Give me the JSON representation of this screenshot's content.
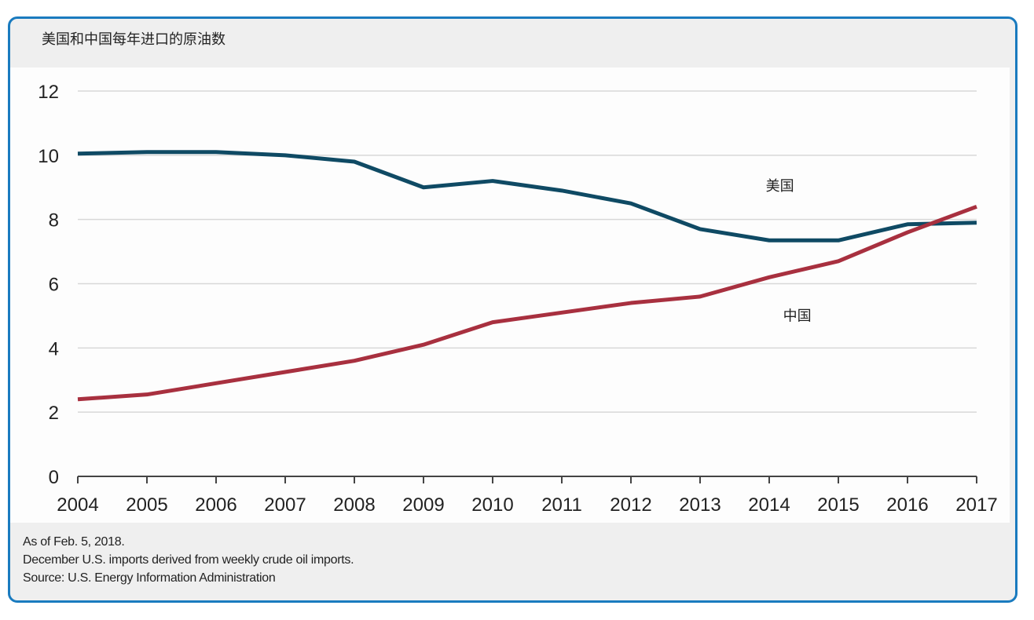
{
  "chart_data": {
    "type": "line",
    "title": "美国和中国每年进口的原油数",
    "xlabel": "",
    "ylabel": "",
    "x": [
      2004,
      2005,
      2006,
      2007,
      2008,
      2009,
      2010,
      2011,
      2012,
      2013,
      2014,
      2015,
      2016,
      2017
    ],
    "x_tick_labels": [
      "2004",
      "2005",
      "2006",
      "2007",
      "2008",
      "2009",
      "2010",
      "2011",
      "2012",
      "2013",
      "2014",
      "2015",
      "2016",
      "2017"
    ],
    "ylim": [
      0,
      12
    ],
    "y_ticks": [
      0,
      2,
      4,
      6,
      8,
      10,
      12
    ],
    "y_tick_labels": [
      "0",
      "2",
      "4",
      "6",
      "8",
      "10",
      "12"
    ],
    "grid": true,
    "legend": "inline labels",
    "series": [
      {
        "name": "美国",
        "color": "#0f4a64",
        "values": [
          10.05,
          10.1,
          10.1,
          10.0,
          9.8,
          9.0,
          9.2,
          8.9,
          8.5,
          7.7,
          7.35,
          7.35,
          7.85,
          7.9
        ],
        "label_at": [
          2013.95,
          8.9
        ]
      },
      {
        "name": "中国",
        "color": "#a8303f",
        "values": [
          2.4,
          2.55,
          2.9,
          3.25,
          3.6,
          4.1,
          4.8,
          5.1,
          5.4,
          5.6,
          6.2,
          6.7,
          7.6,
          8.4
        ],
        "label_at": [
          2014.2,
          4.85
        ]
      }
    ]
  },
  "footer": {
    "lines": [
      "As of Feb. 5, 2018.",
      "December U.S. imports derived from weekly crude oil imports.",
      "Source: U.S. Energy Information Administration"
    ]
  }
}
